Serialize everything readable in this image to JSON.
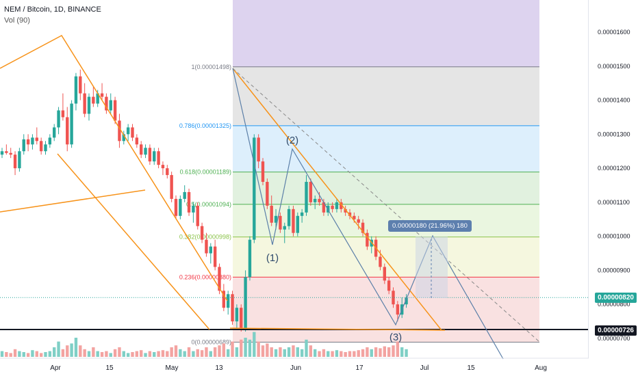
{
  "header": {
    "title": "NEM / Bitcoin, 1D, BINANCE",
    "volume_label": "Vol (90)"
  },
  "chart_data": {
    "type": "candlestick",
    "symbol": "NEM / Bitcoin",
    "interval": "1D",
    "exchange": "BINANCE",
    "x_ticks": [
      "Apr",
      "15",
      "May",
      "13",
      "Jun",
      "17",
      "Jul",
      "15",
      "Aug"
    ],
    "y_ticks": [
      "0.00001600",
      "0.00001500",
      "0.00001400",
      "0.00001300",
      "0.00001200",
      "0.00001100",
      "0.00001000",
      "0.00000900",
      "0.00000800",
      "0.00000700"
    ],
    "ylim": [
      6.4e-06,
      1.7e-05
    ],
    "current_price": "0.00000820",
    "support_level": "0.00000726",
    "fib_levels": [
      {
        "label": "1(0.00001498)",
        "value": 1.498e-05,
        "color": "#787b86"
      },
      {
        "label": "0.786(0.00001325)",
        "value": 1.325e-05,
        "color": "#2196f3"
      },
      {
        "label": "0.618(0.00001189)",
        "value": 1.189e-05,
        "color": "#4caf50"
      },
      {
        "label": "0.5(0.00001094)",
        "value": 1.094e-05,
        "color": "#4caf50"
      },
      {
        "label": "0.382(0.00000998)",
        "value": 9.98e-06,
        "color": "#8bc34a"
      },
      {
        "label": "0.236(0.00000880)",
        "value": 8.8e-06,
        "color": "#f23645"
      },
      {
        "label": "0(0.00000689)",
        "value": 6.89e-06,
        "color": "#787b86"
      }
    ],
    "wave_labels": [
      "(1)",
      "(2)",
      "(3)"
    ],
    "measurement": "0.00000180 (21.96%) 180",
    "candles": [
      [
        1.24,
        1.26,
        1.23,
        1.25
      ],
      [
        1.25,
        1.27,
        1.24,
        1.245
      ],
      [
        1.245,
        1.26,
        1.23,
        1.24
      ],
      [
        1.24,
        1.25,
        1.18,
        1.2
      ],
      [
        1.2,
        1.26,
        1.19,
        1.25
      ],
      [
        1.25,
        1.3,
        1.24,
        1.285
      ],
      [
        1.285,
        1.3,
        1.25,
        1.27
      ],
      [
        1.27,
        1.3,
        1.255,
        1.29
      ],
      [
        1.29,
        1.32,
        1.27,
        1.28
      ],
      [
        1.28,
        1.29,
        1.24,
        1.25
      ],
      [
        1.25,
        1.28,
        1.24,
        1.27
      ],
      [
        1.27,
        1.3,
        1.26,
        1.29
      ],
      [
        1.29,
        1.33,
        1.28,
        1.32
      ],
      [
        1.32,
        1.38,
        1.3,
        1.37
      ],
      [
        1.37,
        1.42,
        1.34,
        1.35
      ],
      [
        1.35,
        1.38,
        1.25,
        1.27
      ],
      [
        1.27,
        1.4,
        1.26,
        1.39
      ],
      [
        1.39,
        1.48,
        1.37,
        1.47
      ],
      [
        1.47,
        1.49,
        1.4,
        1.42
      ],
      [
        1.42,
        1.45,
        1.35,
        1.36
      ],
      [
        1.36,
        1.42,
        1.34,
        1.41
      ],
      [
        1.41,
        1.44,
        1.38,
        1.39
      ],
      [
        1.39,
        1.43,
        1.38,
        1.42
      ],
      [
        1.42,
        1.45,
        1.4,
        1.41
      ],
      [
        1.41,
        1.42,
        1.36,
        1.37
      ],
      [
        1.37,
        1.42,
        1.36,
        1.4
      ],
      [
        1.4,
        1.41,
        1.33,
        1.34
      ],
      [
        1.34,
        1.36,
        1.26,
        1.28
      ],
      [
        1.28,
        1.31,
        1.27,
        1.3
      ],
      [
        1.3,
        1.33,
        1.28,
        1.32
      ],
      [
        1.32,
        1.33,
        1.28,
        1.29
      ],
      [
        1.29,
        1.3,
        1.26,
        1.27
      ],
      [
        1.27,
        1.28,
        1.23,
        1.24
      ],
      [
        1.24,
        1.27,
        1.23,
        1.26
      ],
      [
        1.26,
        1.27,
        1.21,
        1.22
      ],
      [
        1.22,
        1.26,
        1.21,
        1.25
      ],
      [
        1.25,
        1.26,
        1.2,
        1.21
      ],
      [
        1.21,
        1.22,
        1.18,
        1.2
      ],
      [
        1.2,
        1.21,
        1.17,
        1.18
      ],
      [
        1.18,
        1.19,
        1.1,
        1.11
      ],
      [
        1.11,
        1.12,
        1.05,
        1.06
      ],
      [
        1.06,
        1.12,
        1.05,
        1.11
      ],
      [
        1.11,
        1.15,
        1.1,
        1.13
      ],
      [
        1.13,
        1.14,
        1.06,
        1.07
      ],
      [
        1.07,
        1.1,
        1.04,
        1.09
      ],
      [
        1.09,
        1.1,
        1.02,
        1.03
      ],
      [
        1.03,
        1.04,
        0.98,
        0.99
      ],
      [
        0.99,
        1.01,
        0.94,
        0.95
      ],
      [
        0.95,
        0.98,
        0.92,
        0.97
      ],
      [
        0.97,
        0.99,
        0.9,
        0.91
      ],
      [
        0.91,
        0.92,
        0.83,
        0.84
      ],
      [
        0.84,
        0.86,
        0.78,
        0.79
      ],
      [
        0.79,
        0.84,
        0.77,
        0.83
      ],
      [
        0.83,
        0.84,
        0.74,
        0.75
      ],
      [
        0.75,
        0.8,
        0.73,
        0.79
      ],
      [
        0.79,
        0.8,
        0.72,
        0.73
      ],
      [
        0.73,
        0.9,
        0.72,
        0.88
      ],
      [
        0.88,
        1.0,
        0.87,
        0.99
      ],
      [
        0.99,
        1.3,
        0.98,
        1.29
      ],
      [
        1.29,
        1.3,
        1.2,
        1.22
      ],
      [
        1.22,
        1.23,
        1.15,
        1.16
      ],
      [
        1.16,
        1.17,
        1.08,
        1.09
      ],
      [
        1.09,
        1.12,
        1.03,
        1.04
      ],
      [
        1.04,
        1.08,
        1.02,
        1.06
      ],
      [
        1.06,
        1.07,
        1.01,
        1.02
      ],
      [
        1.02,
        1.04,
        0.98,
        1.03
      ],
      [
        1.03,
        1.09,
        1.02,
        1.08
      ],
      [
        1.08,
        1.09,
        1.0,
        1.01
      ],
      [
        1.01,
        1.07,
        1.0,
        1.06
      ],
      [
        1.06,
        1.08,
        1.04,
        1.07
      ],
      [
        1.07,
        1.18,
        1.06,
        1.16
      ],
      [
        1.16,
        1.17,
        1.09,
        1.1
      ],
      [
        1.1,
        1.12,
        1.08,
        1.11
      ],
      [
        1.11,
        1.13,
        1.09,
        1.1
      ],
      [
        1.1,
        1.11,
        1.06,
        1.07
      ],
      [
        1.07,
        1.1,
        1.06,
        1.09
      ],
      [
        1.09,
        1.1,
        1.07,
        1.08
      ],
      [
        1.08,
        1.11,
        1.07,
        1.1
      ],
      [
        1.1,
        1.11,
        1.07,
        1.08
      ],
      [
        1.08,
        1.09,
        1.06,
        1.07
      ],
      [
        1.07,
        1.08,
        1.05,
        1.06
      ],
      [
        1.06,
        1.07,
        1.04,
        1.05
      ],
      [
        1.05,
        1.06,
        1.02,
        1.04
      ],
      [
        1.04,
        1.05,
        1.0,
        1.01
      ],
      [
        1.01,
        1.02,
        0.96,
        0.97
      ],
      [
        0.97,
        1.0,
        0.95,
        0.99
      ],
      [
        0.99,
        1.0,
        0.93,
        0.94
      ],
      [
        0.94,
        0.96,
        0.9,
        0.91
      ],
      [
        0.91,
        0.92,
        0.86,
        0.87
      ],
      [
        0.87,
        0.88,
        0.83,
        0.84
      ],
      [
        0.84,
        0.85,
        0.79,
        0.8
      ],
      [
        0.8,
        0.81,
        0.75,
        0.77
      ],
      [
        0.77,
        0.82,
        0.76,
        0.8
      ],
      [
        0.8,
        0.83,
        0.79,
        0.82
      ]
    ],
    "volumes": [
      0.3,
      0.25,
      0.2,
      0.4,
      0.3,
      0.25,
      0.2,
      0.35,
      0.3,
      0.2,
      0.25,
      0.3,
      0.5,
      0.8,
      0.4,
      0.6,
      0.7,
      1.0,
      0.6,
      0.4,
      0.3,
      0.5,
      0.3,
      0.25,
      0.3,
      0.2,
      0.4,
      0.5,
      0.3,
      0.2,
      0.25,
      0.3,
      0.35,
      0.2,
      0.3,
      0.25,
      0.3,
      0.35,
      0.3,
      0.5,
      0.6,
      0.4,
      0.3,
      0.5,
      0.3,
      0.4,
      0.35,
      0.5,
      0.3,
      0.5,
      0.6,
      0.7,
      0.4,
      0.8,
      0.5,
      0.9,
      1.0,
      0.9,
      1.3,
      0.8,
      0.6,
      0.7,
      0.5,
      0.4,
      0.5,
      0.4,
      0.5,
      0.6,
      0.5,
      0.4,
      0.9,
      0.6,
      0.4,
      0.3,
      0.4,
      0.3,
      0.3,
      0.35,
      0.3,
      0.25,
      0.3,
      0.3,
      0.35,
      0.4,
      0.5,
      0.4,
      0.5,
      0.45,
      0.55,
      0.5,
      0.6,
      0.8,
      0.5,
      0.4
    ]
  },
  "colors": {
    "up": "#26a69a",
    "down": "#ef5350",
    "trend": "#f7931a",
    "wave": "#5b7fa8",
    "support": "#131722"
  }
}
